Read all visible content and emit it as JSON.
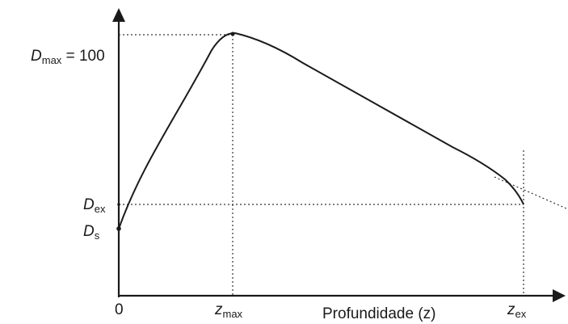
{
  "diagram": {
    "y_labels": {
      "dmax_symbol": "D",
      "dmax_sub": "max",
      "dmax_value": " = 100",
      "dex_symbol": "D",
      "dex_sub": "ex",
      "ds_symbol": "D",
      "ds_sub": "s"
    },
    "x_labels": {
      "origin": "0",
      "zmax_symbol": "z",
      "zmax_sub": "max",
      "axis_title": "Profundidade (z)",
      "zex_symbol": "z",
      "zex_sub": "ex"
    },
    "colors": {
      "curve": "#1a1a1a",
      "axes": "#1a1a1a",
      "guides": "#333333",
      "background": "#ffffff"
    }
  }
}
